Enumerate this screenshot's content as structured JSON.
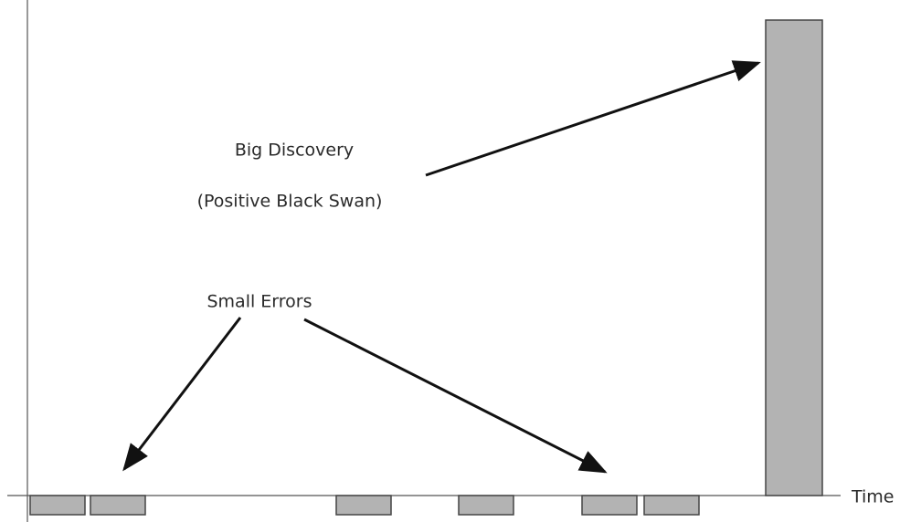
{
  "annotations": {
    "discovery": "Big Discovery",
    "discovery_note": "(Positive Black Swan)",
    "errors": "Small Errors"
  },
  "axis": {
    "x_label": "Time"
  }
}
